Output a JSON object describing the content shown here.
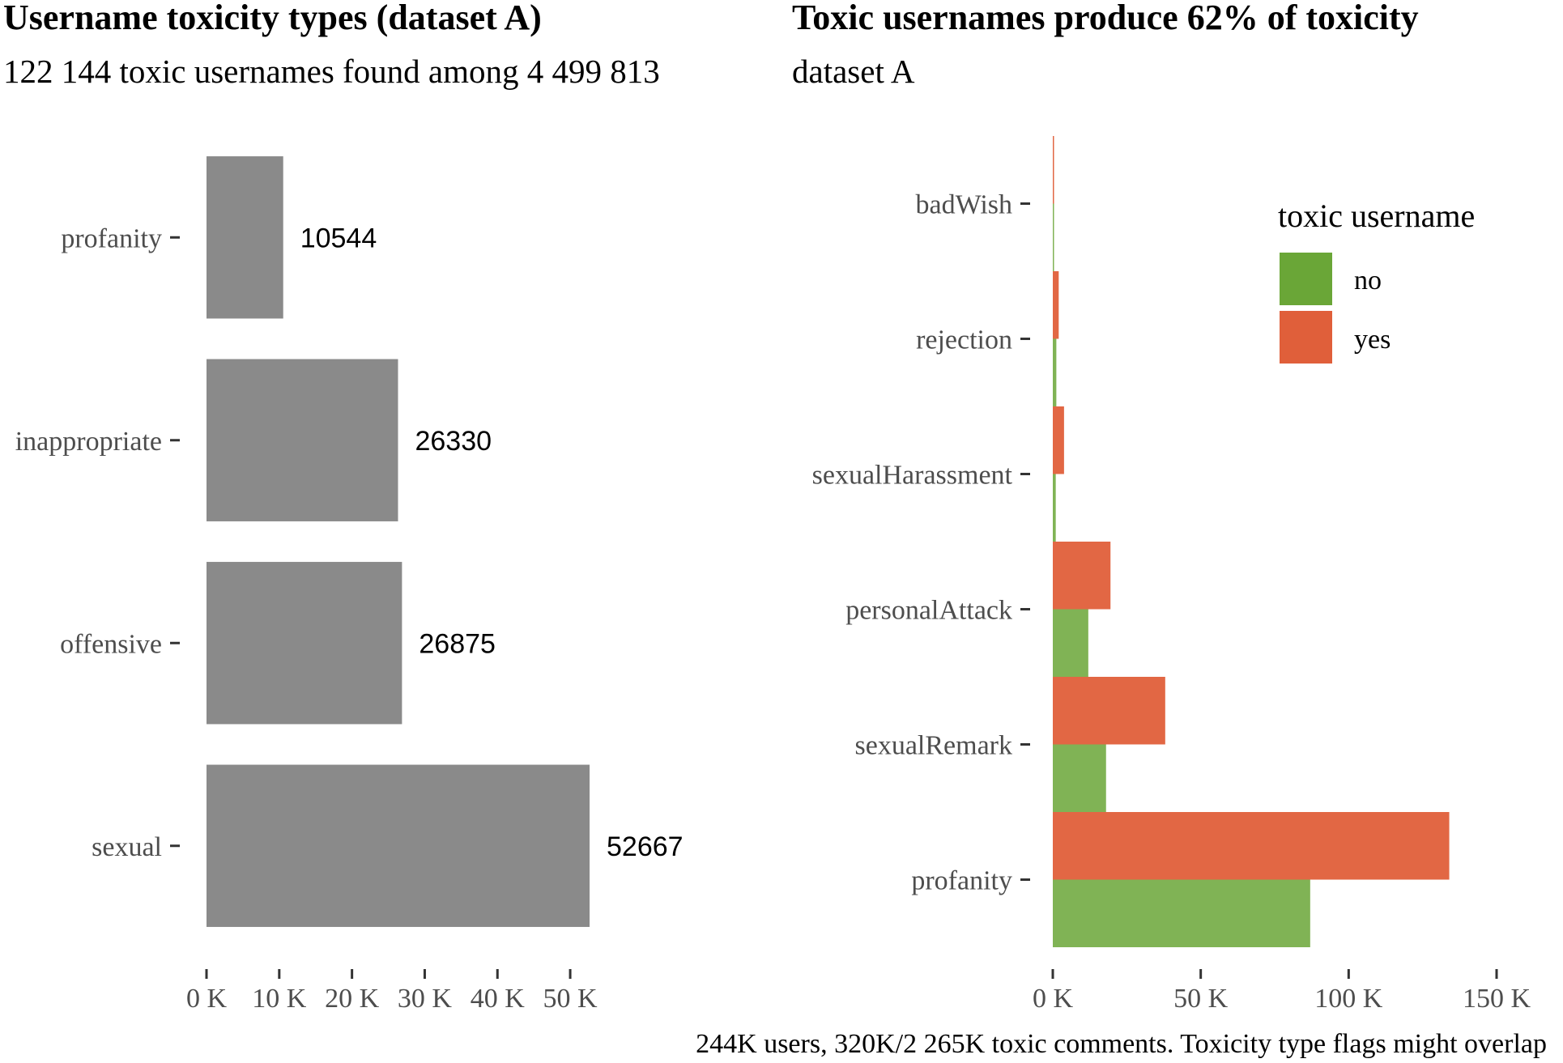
{
  "chart_data": [
    {
      "type": "bar",
      "orientation": "horizontal",
      "title": "Username toxicity types (dataset A)",
      "subtitle": "122 144 toxic usernames found among 4 499 813",
      "categories": [
        "profanity",
        "inappropriate",
        "offensive",
        "sexual"
      ],
      "values": [
        10544,
        26330,
        26875,
        52667
      ],
      "data_labels": [
        "10544",
        "26330",
        "26875",
        "52667"
      ],
      "xlim": [
        0,
        54000
      ],
      "xticks": [
        0,
        10000,
        20000,
        30000,
        40000,
        50000
      ],
      "xtick_labels": [
        "0 K",
        "10 K",
        "20 K",
        "30 K",
        "40 K",
        "50 K"
      ],
      "bar_color": "#8a8a8a",
      "grid": false
    },
    {
      "type": "bar",
      "orientation": "horizontal",
      "layout": "dodged-overlap",
      "title": "Toxic usernames produce 62% of toxicity",
      "subtitle": "dataset A",
      "categories": [
        "badWish",
        "rejection",
        "sexualHarassment",
        "personalAttack",
        "sexualRemark",
        "profanity"
      ],
      "series": [
        {
          "name": "no",
          "color": "#6aa637",
          "values": [
            100,
            1200,
            1000,
            12000,
            18000,
            87000
          ]
        },
        {
          "name": "yes",
          "color": "#e05f3a",
          "values": [
            300,
            2000,
            3800,
            19500,
            38000,
            134000
          ]
        }
      ],
      "xlim": [
        0,
        150000
      ],
      "xticks": [
        0,
        50000,
        100000,
        150000
      ],
      "xtick_labels": [
        "0 K",
        "50 K",
        "100 K",
        "150 K"
      ],
      "legend": {
        "title": "toxic username",
        "placement": "top-right"
      },
      "caption": "244K users, 320K/2 265K toxic comments. Toxicity type flags might overlap",
      "grid": false
    }
  ]
}
